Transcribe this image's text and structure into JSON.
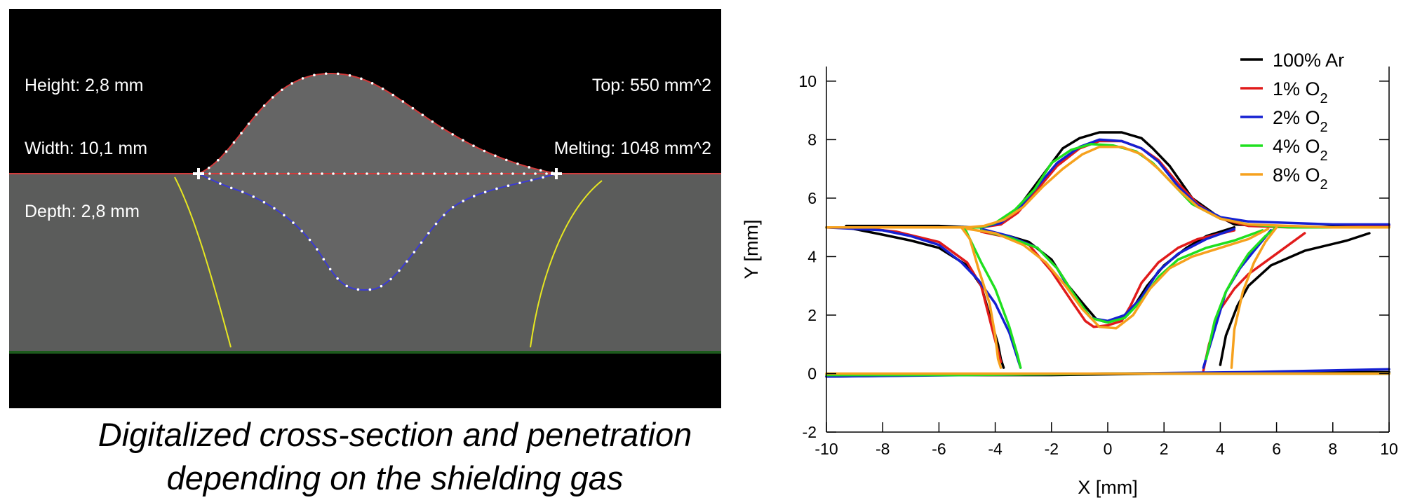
{
  "micrograph": {
    "measurements_left": [
      "Height: 2,8 mm",
      "Width: 10,1 mm",
      "Depth: 2,8 mm"
    ],
    "measurements_right": [
      "Top: 550 mm^2",
      "Melting: 1048 mm^2"
    ],
    "colors": {
      "background": "#000000",
      "plate": "#5b5c5b",
      "weld": "#656565",
      "top_outline": "#d23c3c",
      "bottom_outline": "#3c3cd2",
      "fusion_lines": "#e8e820",
      "points": "#ffffff",
      "plate_bottom_edge": "#1d5a1d"
    }
  },
  "caption": {
    "line1": "Digitalized cross-section and penetration",
    "line2": "depending on the shielding gas"
  },
  "chart_data": {
    "type": "line",
    "xlabel": "X [mm]",
    "ylabel": "Y [mm]",
    "xlim": [
      -10,
      10
    ],
    "ylim": [
      -2,
      10.5
    ],
    "xticks": [
      -10,
      -8,
      -6,
      -4,
      -2,
      0,
      2,
      4,
      6,
      8,
      10
    ],
    "yticks": [
      -2,
      0,
      2,
      4,
      6,
      8,
      10
    ],
    "grid": false,
    "legend_position": "top-right",
    "series": [
      {
        "name": "100% Ar",
        "name_main": "100% Ar",
        "name_sub": "",
        "color": "#000000",
        "segments": [
          {
            "x": [
              -9.3,
              -7.5,
              -6.0,
              -4.8,
              -4.5,
              -4.0,
              -3.5,
              -3.0,
              -2.3,
              -1.6,
              -1.0,
              -0.3,
              0.5,
              1.2,
              1.6,
              2.2,
              3.0,
              3.8,
              4.5,
              5.5,
              7.0,
              9.0
            ],
            "y": [
              5.05,
              5.05,
              5.05,
              5.0,
              5.0,
              5.1,
              5.35,
              5.9,
              6.8,
              7.7,
              8.05,
              8.25,
              8.25,
              8.05,
              7.7,
              7.1,
              6.0,
              5.45,
              5.1,
              5.05,
              5.0,
              5.05
            ]
          },
          {
            "x": [
              -9.3,
              -8.0,
              -7.0,
              -6.0,
              -5.0,
              -4.5,
              -4.2,
              -3.9,
              -3.8,
              -3.7
            ],
            "y": [
              5.0,
              4.75,
              4.55,
              4.3,
              3.7,
              3.0,
              2.0,
              1.0,
              0.5,
              0.2
            ]
          },
          {
            "x": [
              -4.5,
              -3.5,
              -2.8,
              -2.0,
              -1.4,
              -0.8,
              -0.4,
              0.0,
              0.5,
              1.0,
              1.4,
              2.0,
              2.8,
              3.5,
              4.5
            ],
            "y": [
              4.9,
              4.7,
              4.5,
              3.9,
              3.0,
              2.3,
              1.85,
              1.75,
              1.9,
              2.4,
              3.0,
              3.7,
              4.3,
              4.7,
              5.0
            ]
          },
          {
            "x": [
              4.0,
              4.2,
              4.6,
              5.0,
              5.8,
              7.0,
              8.5,
              9.3
            ],
            "y": [
              0.3,
              1.3,
              2.3,
              3.0,
              3.7,
              4.2,
              4.55,
              4.8
            ]
          },
          {
            "x": [
              -10.0,
              -6.0,
              -2.0,
              2.0,
              6.0,
              10.0
            ],
            "y": [
              -0.1,
              -0.05,
              -0.05,
              0.0,
              0.05,
              0.05
            ]
          }
        ]
      },
      {
        "name": "1% O2",
        "name_main": "1% O",
        "name_sub": "2",
        "color": "#e11b1b",
        "segments": [
          {
            "x": [
              -10.0,
              -8.0,
              -6.0,
              -5.0,
              -4.5,
              -3.8,
              -3.2,
              -2.5,
              -1.8,
              -1.0,
              -0.3,
              0.5,
              1.2,
              1.8,
              2.5,
              3.2,
              4.0,
              5.0,
              6.5,
              8.0,
              10.0
            ],
            "y": [
              5.0,
              5.0,
              5.0,
              5.0,
              5.0,
              5.1,
              5.5,
              6.3,
              7.1,
              7.7,
              7.95,
              7.95,
              7.7,
              7.3,
              6.5,
              5.8,
              5.3,
              5.05,
              5.0,
              5.0,
              5.05
            ]
          },
          {
            "x": [
              -10.0,
              -8.5,
              -7.5,
              -6.0,
              -5.0,
              -4.5,
              -4.1,
              -3.8
            ],
            "y": [
              5.0,
              4.95,
              4.85,
              4.5,
              3.8,
              3.0,
              1.5,
              0.4
            ]
          },
          {
            "x": [
              -4.5,
              -3.5,
              -2.8,
              -2.0,
              -1.3,
              -0.8,
              -0.5,
              0.0,
              0.5,
              0.8,
              1.2,
              1.8,
              2.5,
              3.2,
              4.5
            ],
            "y": [
              4.85,
              4.65,
              4.4,
              3.5,
              2.5,
              1.8,
              1.6,
              1.65,
              1.8,
              2.3,
              3.1,
              3.8,
              4.3,
              4.6,
              4.9
            ]
          },
          {
            "x": [
              3.4,
              3.6,
              4.0,
              4.5,
              5.0,
              6.0,
              7.0
            ],
            "y": [
              0.1,
              1.0,
              2.2,
              2.9,
              3.4,
              4.1,
              4.8
            ]
          },
          {
            "x": [
              -10.0,
              -5.0,
              0.0,
              5.0,
              10.0
            ],
            "y": [
              -0.05,
              -0.05,
              0.0,
              0.0,
              0.0
            ]
          }
        ]
      },
      {
        "name": "2% O2",
        "name_main": "2% O",
        "name_sub": "2",
        "color": "#1520d2",
        "segments": [
          {
            "x": [
              -10.0,
              -8.0,
              -6.0,
              -5.0,
              -4.5,
              -3.8,
              -3.2,
              -2.5,
              -1.8,
              -1.0,
              -0.3,
              0.5,
              1.2,
              1.8,
              2.5,
              3.2,
              4.0,
              5.0,
              6.5,
              8.0,
              10.0
            ],
            "y": [
              5.0,
              5.0,
              5.0,
              5.0,
              5.0,
              5.15,
              5.6,
              6.4,
              7.2,
              7.75,
              8.0,
              7.95,
              7.7,
              7.25,
              6.4,
              5.75,
              5.35,
              5.2,
              5.15,
              5.1,
              5.1
            ]
          },
          {
            "x": [
              -10.0,
              -9.0,
              -8.0,
              -7.0,
              -6.0,
              -5.2,
              -4.6,
              -4.0,
              -3.5,
              -3.2,
              -3.1
            ],
            "y": [
              5.0,
              4.95,
              4.9,
              4.7,
              4.4,
              3.8,
              3.2,
              2.4,
              1.4,
              0.5,
              0.2
            ]
          },
          {
            "x": [
              -4.5,
              -3.5,
              -2.5,
              -1.8,
              -1.2,
              -0.6,
              0.0,
              0.6,
              1.2,
              1.8,
              2.5,
              3.5,
              4.5
            ],
            "y": [
              4.95,
              4.7,
              4.3,
              3.6,
              2.6,
              1.9,
              1.8,
              2.0,
              2.6,
              3.5,
              4.1,
              4.6,
              4.95
            ]
          },
          {
            "x": [
              3.4,
              3.8,
              4.2,
              4.7,
              5.2,
              5.8
            ],
            "y": [
              0.2,
              1.5,
              2.8,
              3.6,
              4.2,
              4.9
            ]
          },
          {
            "x": [
              -10.0,
              -5.0,
              0.0,
              5.0,
              10.0
            ],
            "y": [
              -0.1,
              -0.05,
              0.0,
              0.05,
              0.15
            ]
          }
        ]
      },
      {
        "name": "4% O2",
        "name_main": "4% O",
        "name_sub": "2",
        "color": "#1fe01f",
        "segments": [
          {
            "x": [
              -10.0,
              -8.0,
              -6.0,
              -5.0,
              -4.5,
              -4.0,
              -3.3,
              -2.6,
              -2.0,
              -1.3,
              -0.6,
              0.2,
              1.0,
              1.6,
              2.3,
              3.0,
              4.0,
              5.0,
              6.5,
              8.0,
              10.0
            ],
            "y": [
              5.0,
              5.0,
              5.0,
              5.0,
              5.0,
              5.15,
              5.6,
              6.3,
              7.2,
              7.65,
              7.85,
              7.8,
              7.6,
              7.2,
              6.5,
              5.8,
              5.3,
              5.1,
              5.0,
              5.0,
              5.0
            ]
          },
          {
            "x": [
              -5.1,
              -4.8,
              -4.5,
              -4.0,
              -3.5,
              -3.2,
              -3.1
            ],
            "y": [
              5.0,
              4.4,
              3.8,
              2.9,
              1.6,
              0.6,
              0.2
            ]
          },
          {
            "x": [
              -4.5,
              -3.5,
              -2.5,
              -1.8,
              -1.2,
              -0.6,
              0.0,
              0.6,
              1.2,
              1.8,
              2.5,
              3.5,
              4.5,
              5.5
            ],
            "y": [
              4.9,
              4.65,
              4.3,
              3.6,
              2.7,
              1.9,
              1.75,
              1.9,
              2.5,
              3.3,
              3.9,
              4.3,
              4.55,
              4.9
            ]
          },
          {
            "x": [
              3.5,
              3.8,
              4.2,
              4.6,
              5.0,
              5.6,
              6.0
            ],
            "y": [
              0.5,
              1.8,
              2.8,
              3.5,
              4.1,
              4.7,
              5.0
            ]
          },
          {
            "x": [
              -10.0,
              -5.0,
              0.0,
              5.0,
              10.0
            ],
            "y": [
              -0.05,
              -0.05,
              0.0,
              0.0,
              0.0
            ]
          }
        ]
      },
      {
        "name": "8% O2",
        "name_main": "8% O",
        "name_sub": "2",
        "color": "#f6a11d",
        "segments": [
          {
            "x": [
              -10.0,
              -8.0,
              -6.0,
              -5.0,
              -4.4,
              -3.7,
              -3.0,
              -2.3,
              -1.6,
              -0.9,
              -0.3,
              0.5,
              1.2,
              1.8,
              2.5,
              3.2,
              4.0,
              5.0,
              6.5,
              8.0,
              10.0
            ],
            "y": [
              5.0,
              5.0,
              5.0,
              5.0,
              5.05,
              5.25,
              5.7,
              6.4,
              7.0,
              7.5,
              7.75,
              7.75,
              7.5,
              7.0,
              6.3,
              5.7,
              5.3,
              5.1,
              5.05,
              5.0,
              5.0
            ]
          },
          {
            "x": [
              -5.2,
              -4.9,
              -4.6,
              -4.2,
              -4.0,
              -3.9,
              -3.8
            ],
            "y": [
              5.0,
              4.6,
              3.6,
              2.4,
              1.3,
              0.5,
              0.2
            ]
          },
          {
            "x": [
              -5.0,
              -4.0,
              -3.0,
              -2.2,
              -1.5,
              -0.9,
              -0.3,
              0.3,
              0.9,
              1.5,
              2.2,
              3.0,
              4.0,
              5.0,
              5.7
            ],
            "y": [
              4.95,
              4.8,
              4.4,
              3.8,
              3.0,
              2.2,
              1.6,
              1.55,
              2.0,
              2.9,
              3.6,
              4.0,
              4.3,
              4.6,
              4.95
            ]
          },
          {
            "x": [
              4.4,
              4.5,
              4.8,
              5.2,
              5.6,
              6.0
            ],
            "y": [
              0.2,
              1.5,
              2.8,
              3.8,
              4.5,
              5.0
            ]
          },
          {
            "x": [
              -10.0,
              -5.0,
              0.0,
              5.0,
              10.0
            ],
            "y": [
              0.0,
              0.0,
              0.0,
              0.0,
              0.0
            ]
          }
        ]
      }
    ]
  }
}
